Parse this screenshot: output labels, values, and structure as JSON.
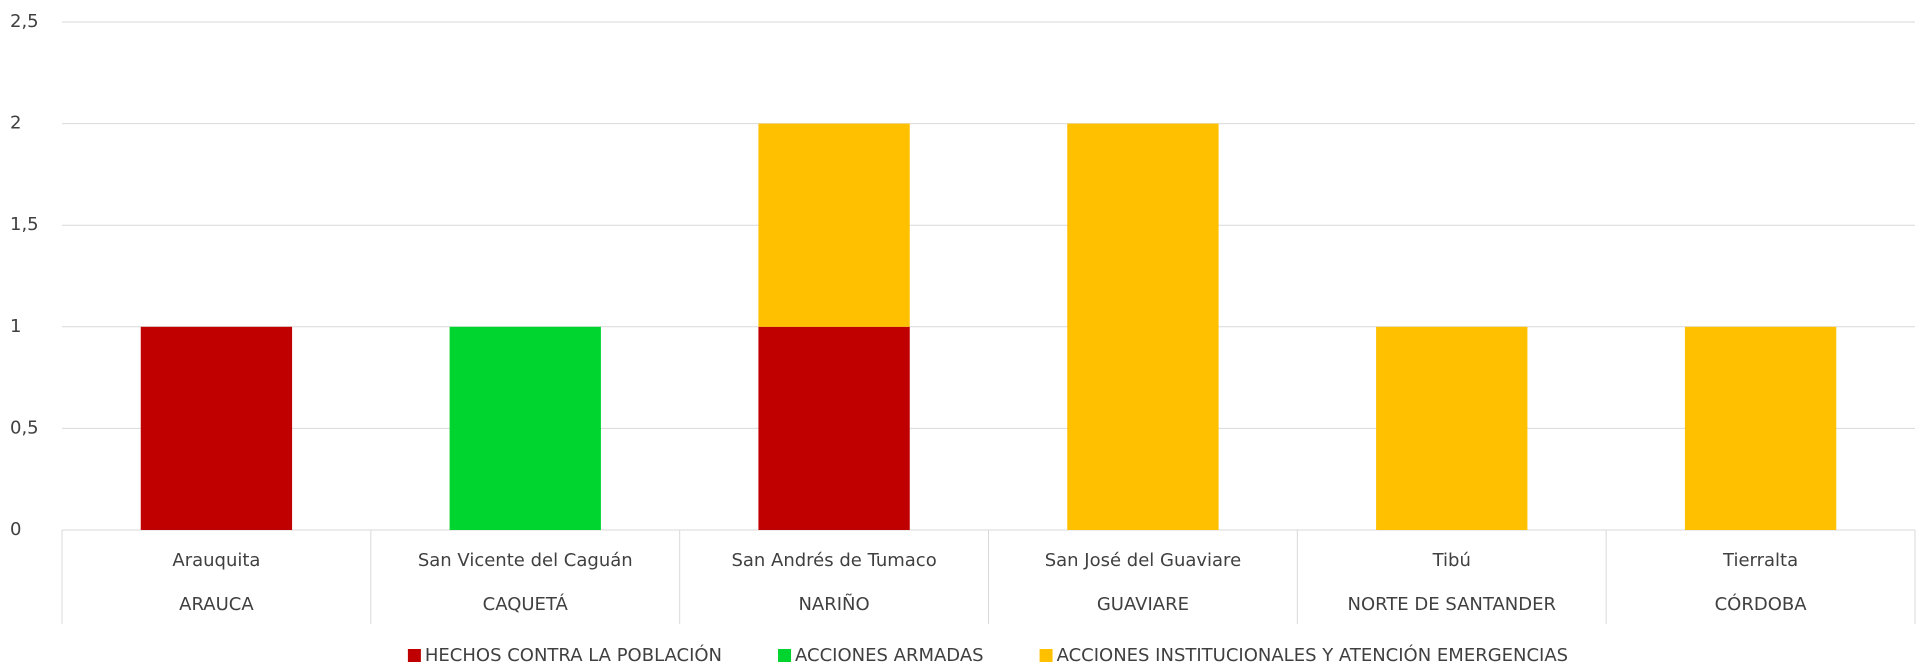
{
  "chart_data": {
    "type": "stacked_bar",
    "categories": [
      "Arauquita",
      "San Vicente del Caguán",
      "San Andrés de Tumaco",
      "San José del Guaviare",
      "Tibú",
      "Tierralta"
    ],
    "groups": [
      "ARAUCA",
      "CAQUETÁ",
      "NARIÑO",
      "GUAVIARE",
      "NORTE DE SANTANDER",
      "CÓRDOBA"
    ],
    "series": [
      {
        "name": "HECHOS CONTRA LA POBLACIÓN",
        "color": "#c00000",
        "values": [
          1,
          0,
          1,
          0,
          0,
          0
        ]
      },
      {
        "name": "ACCIONES ARMADAS",
        "color": "#00d42e",
        "values": [
          0,
          1,
          0,
          0,
          0,
          0
        ]
      },
      {
        "name": "ACCIONES INSTITUCIONALES Y ATENCIÓN EMERGENCIAS",
        "color": "#ffc000",
        "values": [
          0,
          0,
          1,
          2,
          1,
          1
        ]
      }
    ],
    "ylim": [
      0,
      2.5
    ],
    "yticks": [
      0,
      {
        "value": 0.5,
        "label": "0,5"
      },
      1,
      {
        "value": 1.5,
        "label": "1,5"
      },
      2,
      {
        "value": 2.5,
        "label": "2,5"
      }
    ],
    "grid": true,
    "legend": "bottom"
  }
}
